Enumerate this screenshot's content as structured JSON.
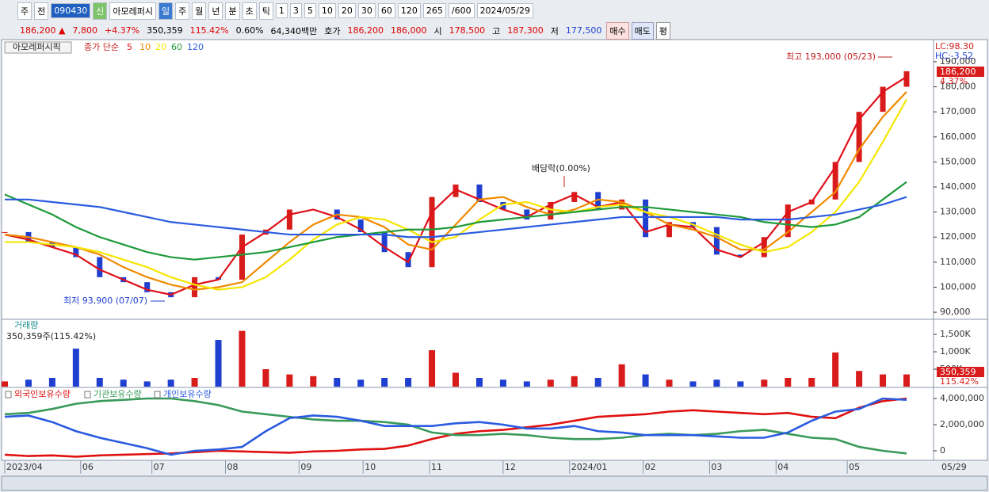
{
  "toolbar": {
    "items": [
      "주",
      "전",
      "090430",
      "신",
      "아모레퍼시",
      "일",
      "주",
      "월",
      "년",
      "분",
      "초",
      "틱",
      "1",
      "3",
      "5",
      "10",
      "20",
      "30",
      "60",
      "120",
      "265",
      "/600",
      "2024/05/29"
    ]
  },
  "info_bar": {
    "items": [
      "186,200 ▲",
      "7,800",
      "+4.37%",
      "350,359",
      "115.42%",
      "0.60%",
      "64,340백만",
      "호가",
      "186,200",
      "186,000",
      "시",
      "178,500",
      "고",
      "187,300",
      "저",
      "177,500",
      "매수",
      "매도",
      "평"
    ]
  },
  "chart_data": [
    {
      "type": "line",
      "title": "아모레퍼시픽",
      "subtitle": "종가 단순",
      "xlim": [
        0,
        38
      ],
      "ylim": [
        87500,
        198200
      ],
      "yticks": [
        {
          "value": 90000,
          "label": "90,000"
        },
        {
          "value": 100000,
          "label": "100,000"
        },
        {
          "value": 110000,
          "label": "110,000"
        },
        {
          "value": 120000,
          "label": "120,000"
        },
        {
          "value": 130000,
          "label": "130,000"
        },
        {
          "value": 140000,
          "label": "140,000"
        },
        {
          "value": 150000,
          "label": "150,000"
        },
        {
          "value": 160000,
          "label": "160,000"
        },
        {
          "value": 170000,
          "label": "170,000"
        },
        {
          "value": 180000,
          "label": "180,000"
        },
        {
          "value": 190000,
          "label": "190,000"
        }
      ],
      "grid": false,
      "up_color": "#d81b1b",
      "down_color": "#1f3fd0",
      "close": [
        122000,
        118000,
        116000,
        112000,
        104000,
        102000,
        98000,
        96000,
        104000,
        103000,
        121000,
        123000,
        131000,
        131000,
        127000,
        122000,
        114000,
        108000,
        136000,
        141000,
        134000,
        131000,
        127000,
        134000,
        138000,
        131000,
        135000,
        120000,
        126000,
        124000,
        113000,
        112000,
        120000,
        133000,
        135000,
        150000,
        170000,
        180000,
        186200
      ],
      "value_labels": [
        null,
        null,
        null,
        null,
        null,
        null,
        null,
        null,
        null,
        null,
        null,
        null,
        null,
        null,
        null,
        null,
        null,
        null,
        null,
        null,
        null,
        null,
        null,
        null,
        null,
        null,
        null,
        null,
        null,
        null,
        null,
        null,
        null,
        null,
        null,
        null,
        null,
        null,
        "186,200"
      ],
      "change_label": "4.37%",
      "lc_label": "LC:98.30",
      "hc_label": "HC:-3.52",
      "annotations": [
        "최고 193,000 (05/23)",
        "최저 93,900 (07/07)",
        "배당락(0.00%)"
      ],
      "series": [
        {
          "name": "5",
          "color": "#e0101a",
          "values": [
            121000,
            119000,
            116000,
            113000,
            107000,
            103000,
            99000,
            97000,
            101000,
            103000,
            116000,
            122000,
            129000,
            131000,
            128000,
            123000,
            116000,
            110000,
            130000,
            139000,
            135000,
            131000,
            128000,
            133000,
            137000,
            132000,
            134000,
            122000,
            125000,
            124000,
            115000,
            112000,
            118000,
            130000,
            134000,
            148000,
            167000,
            178000,
            184000
          ]
        },
        {
          "name": "10",
          "color": "#f08a00",
          "values": [
            121000,
            120000,
            118000,
            116000,
            113000,
            108000,
            104000,
            101000,
            99000,
            100000,
            102000,
            110000,
            118000,
            125000,
            129000,
            128000,
            124000,
            117000,
            115000,
            125000,
            135000,
            136000,
            132000,
            129000,
            131000,
            135000,
            134000,
            130000,
            125000,
            123000,
            120000,
            115000,
            115000,
            122000,
            130000,
            138000,
            155000,
            168000,
            178000
          ]
        },
        {
          "name": "20",
          "color": "#f5e600",
          "values": [
            118000,
            118000,
            117000,
            116000,
            114000,
            111000,
            108000,
            104000,
            101000,
            99000,
            100000,
            104000,
            111000,
            119000,
            125000,
            128000,
            127000,
            123000,
            118000,
            120000,
            127000,
            133000,
            134000,
            131000,
            130000,
            132000,
            133000,
            130000,
            128000,
            125000,
            121000,
            117000,
            114000,
            116000,
            122000,
            130000,
            142000,
            158000,
            175000
          ]
        },
        {
          "name": "60",
          "color": "#1e9a3a",
          "values": [
            137000,
            133000,
            129000,
            124000,
            120000,
            117000,
            114000,
            112000,
            111000,
            112000,
            113000,
            114000,
            116000,
            118000,
            120000,
            121000,
            122000,
            123000,
            123000,
            124000,
            126000,
            127000,
            128000,
            129000,
            130000,
            131000,
            132000,
            132000,
            131000,
            130000,
            129000,
            128000,
            126000,
            125000,
            124000,
            125000,
            128000,
            135000,
            142000
          ]
        },
        {
          "name": "120",
          "color": "#2a5be0",
          "values": [
            135000,
            135000,
            134000,
            133000,
            132000,
            130000,
            128000,
            126000,
            125000,
            124000,
            123000,
            122000,
            121000,
            121000,
            121000,
            121000,
            121000,
            120000,
            120000,
            121000,
            122000,
            123000,
            124000,
            125000,
            126000,
            127000,
            128000,
            128000,
            128000,
            128000,
            128000,
            127000,
            127000,
            127000,
            128000,
            129000,
            131000,
            133000,
            136000
          ]
        }
      ]
    },
    {
      "type": "bar",
      "title": "거래량",
      "subtitle": "350,359주(115.42%)",
      "xlim": [
        0,
        38
      ],
      "ylim": [
        0,
        1909000
      ],
      "yticks": [
        {
          "value": 500000,
          "label": "500K"
        },
        {
          "value": 1000000,
          "label": "1,000K"
        },
        {
          "value": 1500000,
          "label": "1,500K"
        }
      ],
      "values": [
        150000,
        200000,
        250000,
        1090000,
        250000,
        200000,
        150000,
        200000,
        250000,
        1340000,
        1600000,
        500000,
        350000,
        300000,
        250000,
        200000,
        250000,
        250000,
        1045000,
        400000,
        250000,
        200000,
        150000,
        200000,
        300000,
        250000,
        640000,
        350000,
        200000,
        150000,
        200000,
        150000,
        200000,
        250000,
        250000,
        980000,
        450000,
        350000,
        350359
      ],
      "value_labels": [
        null,
        null,
        null,
        null,
        null,
        null,
        null,
        null,
        null,
        null,
        null,
        null,
        null,
        null,
        null,
        null,
        null,
        null,
        null,
        null,
        null,
        null,
        null,
        null,
        null,
        null,
        null,
        null,
        null,
        null,
        null,
        null,
        null,
        null,
        null,
        null,
        null,
        null,
        "350,359"
      ],
      "change_label": "115.42%"
    },
    {
      "type": "line",
      "xlim": [
        0,
        38
      ],
      "ylim": [
        -666000,
        4788000
      ],
      "yticks": [
        0,
        {
          "value": 2000000,
          "label": "2,000,000"
        },
        {
          "value": 4000000,
          "label": "4,000,000"
        }
      ],
      "xticks": [
        {
          "value": 0,
          "label": "2023/04"
        },
        {
          "value": 3.2,
          "label": "06"
        },
        {
          "value": 6.2,
          "label": "07"
        },
        {
          "value": 9.3,
          "label": "08"
        },
        {
          "value": 12.4,
          "label": "09"
        },
        {
          "value": 15.1,
          "label": "10"
        },
        {
          "value": 17.9,
          "label": "11"
        },
        {
          "value": 21.0,
          "label": "12"
        },
        {
          "value": 23.8,
          "label": "2024/01"
        },
        {
          "value": 26.9,
          "label": "02"
        },
        {
          "value": 29.7,
          "label": "03"
        },
        {
          "value": 32.5,
          "label": "04"
        },
        {
          "value": 35.5,
          "label": "05"
        }
      ],
      "end_label": "05/29",
      "series": [
        {
          "name": "외국인보유수량",
          "color": "#e01010",
          "values": [
            -300000,
            -400000,
            -350000,
            -450000,
            -350000,
            -300000,
            -250000,
            -200000,
            -100000,
            0,
            -50000,
            -100000,
            -150000,
            -50000,
            0,
            100000,
            150000,
            400000,
            900000,
            1300000,
            1500000,
            1600000,
            1800000,
            2000000,
            2300000,
            2600000,
            2700000,
            2800000,
            3000000,
            3100000,
            3000000,
            2900000,
            2800000,
            2900000,
            2600000,
            2500000,
            3300000,
            3800000,
            4000000
          ]
        },
        {
          "name": "기관보유수량",
          "color": "#3a9a5a",
          "values": [
            2800000,
            2900000,
            3200000,
            3600000,
            3800000,
            3900000,
            4000000,
            4000000,
            3800000,
            3500000,
            3000000,
            2800000,
            2600000,
            2400000,
            2300000,
            2300000,
            2200000,
            2000000,
            1400000,
            1200000,
            1200000,
            1300000,
            1200000,
            1000000,
            900000,
            900000,
            1000000,
            1200000,
            1300000,
            1200000,
            1300000,
            1500000,
            1600000,
            1300000,
            1000000,
            900000,
            300000,
            0,
            -200000
          ]
        },
        {
          "name": "개인보유수량",
          "color": "#2a5be0",
          "values": [
            2600000,
            2700000,
            2200000,
            1500000,
            1000000,
            600000,
            200000,
            -300000,
            0,
            100000,
            300000,
            1500000,
            2500000,
            2700000,
            2600000,
            2300000,
            1900000,
            1900000,
            1900000,
            2100000,
            2200000,
            2000000,
            1700000,
            1700000,
            1900000,
            1500000,
            1400000,
            1200000,
            1200000,
            1200000,
            1100000,
            1000000,
            1000000,
            1400000,
            2300000,
            3000000,
            3200000,
            4000000,
            3900000
          ]
        }
      ]
    }
  ]
}
